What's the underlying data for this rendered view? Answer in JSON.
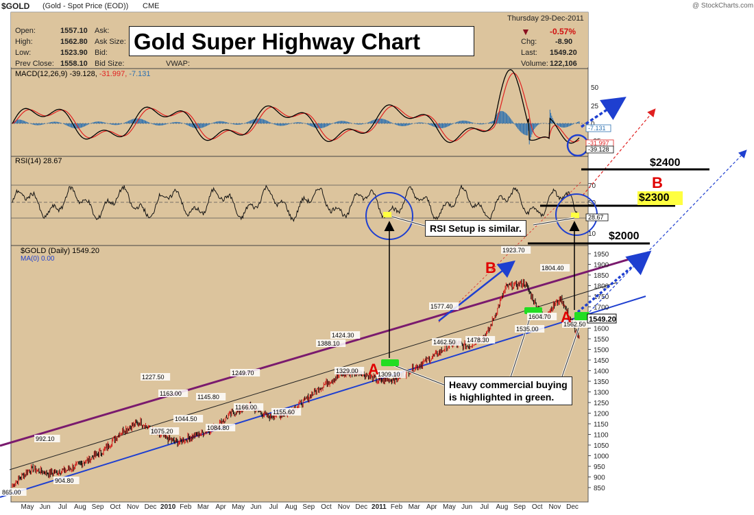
{
  "header": {
    "symbol": "$GOLD",
    "description": "(Gold - Spot Price (EOD))",
    "exchange": "CME",
    "copyright": "@ StockCharts.com",
    "date": "Thursday  29-Dec-2011",
    "open_label": "Open:",
    "open": "1557.10",
    "high_label": "High:",
    "high": "1562.80",
    "low_label": "Low:",
    "low": "1523.90",
    "prevclose_label": "Prev Close:",
    "prevclose": "1558.10",
    "ask_label": "Ask:",
    "asksize_label": "Ask Size:",
    "bid_label": "Bid:",
    "bidsize_label": "Bid Size:",
    "vwap_label": "VWAP:",
    "pct_change": "-0.57%",
    "chg_label": "Chg:",
    "chg": "-8.90",
    "last_label": "Last:",
    "last": "1549.20",
    "volume_label": "Volume:",
    "volume": "122,106"
  },
  "title": "Gold Super Highway Chart",
  "colors": {
    "background": "#dcc49d",
    "macd_line": "#000000",
    "signal_line": "#e02020",
    "histogram": "#2a6fb0",
    "channel_upper": "#7a1a6e",
    "channel_lower": "#1e3fd0",
    "annotation_red": "#e00000",
    "highlight_green": "#22dd22",
    "price_up": "#d01010",
    "price_down": "#000000"
  },
  "macd_panel": {
    "label": "MACD(12,26,9) -39.128, -31.997, -7.131",
    "label_parts": [
      "MACD(12,26,9) -39.128, ",
      "-31.997, ",
      "-7.131"
    ],
    "ticks": [
      "50",
      "25",
      "0",
      "-25"
    ],
    "value_tags": [
      "-7.131",
      "-31.997",
      "-39.128"
    ]
  },
  "rsi_panel": {
    "label": "RSI(14) 28.67",
    "ticks": [
      "70",
      "50",
      "30",
      "10"
    ],
    "value_tag": "28.67"
  },
  "price_panel": {
    "label": "$GOLD (Daily) 1549.20",
    "ma_label": "MA(0) 0.00",
    "last_tag": "1549.20",
    "ticks": [
      "1950",
      "1900",
      "1850",
      "1800",
      "1750",
      "1700",
      "1650",
      "1600",
      "1550",
      "1500",
      "1450",
      "1400",
      "1350",
      "1300",
      "1250",
      "1200",
      "1150",
      "1100",
      "1050",
      "1000",
      "950",
      "900",
      "850"
    ]
  },
  "x_axis": [
    "May",
    "Jun",
    "Jul",
    "Aug",
    "Sep",
    "Oct",
    "Nov",
    "Dec",
    "2010",
    "Feb",
    "Mar",
    "Apr",
    "May",
    "Jun",
    "Jul",
    "Aug",
    "Sep",
    "Oct",
    "Nov",
    "Dec",
    "2011",
    "Feb",
    "Mar",
    "Apr",
    "May",
    "Jun",
    "Jul",
    "Aug",
    "Sep",
    "Oct",
    "Nov",
    "Dec"
  ],
  "chart_data": {
    "type": "line",
    "series": [
      {
        "name": "$GOLD (Daily)",
        "x": [
          "May",
          "Jun",
          "Jul",
          "Aug",
          "Sep",
          "Oct",
          "Nov",
          "Dec",
          "2010",
          "Feb",
          "Mar",
          "Apr",
          "May",
          "Jun",
          "Jul",
          "Aug",
          "Sep",
          "Oct",
          "Nov",
          "Dec",
          "2011",
          "Feb",
          "Mar",
          "Apr",
          "May",
          "Jun",
          "Jul",
          "Aug",
          "Sep",
          "Oct",
          "Nov",
          "Dec"
        ],
        "values": [
          880,
          955,
          935,
          950,
          990,
          1040,
          1130,
          1170,
          1110,
          1075,
          1110,
          1140,
          1210,
          1240,
          1195,
          1210,
          1270,
          1340,
          1390,
          1400,
          1360,
          1370,
          1420,
          1470,
          1530,
          1520,
          1580,
          1790,
          1810,
          1650,
          1740,
          1549
        ]
      }
    ],
    "ylim": [
      850,
      1950
    ],
    "data_labels": [
      "865.00",
      "992.10",
      "904.80",
      "1227.50",
      "1163.00",
      "1075.20",
      "1145.80",
      "1044.50",
      "1249.70",
      "1084.80",
      "1166.00",
      "1155.60",
      "1388.10",
      "1424.30",
      "1329.00",
      "1309.10",
      "1577.40",
      "1462.50",
      "1478.30",
      "1923.70",
      "1804.40",
      "1604.70",
      "1535.00",
      "1562.50"
    ],
    "annotations": {
      "levels": [
        "$2400",
        "$2300",
        "$2000"
      ],
      "marks": [
        "A",
        "B",
        "A",
        "B"
      ],
      "rsi_callout": "RSI Setup is similar.",
      "buying_callout": [
        "Heavy commercial buying",
        "is highlighted in green."
      ]
    }
  }
}
